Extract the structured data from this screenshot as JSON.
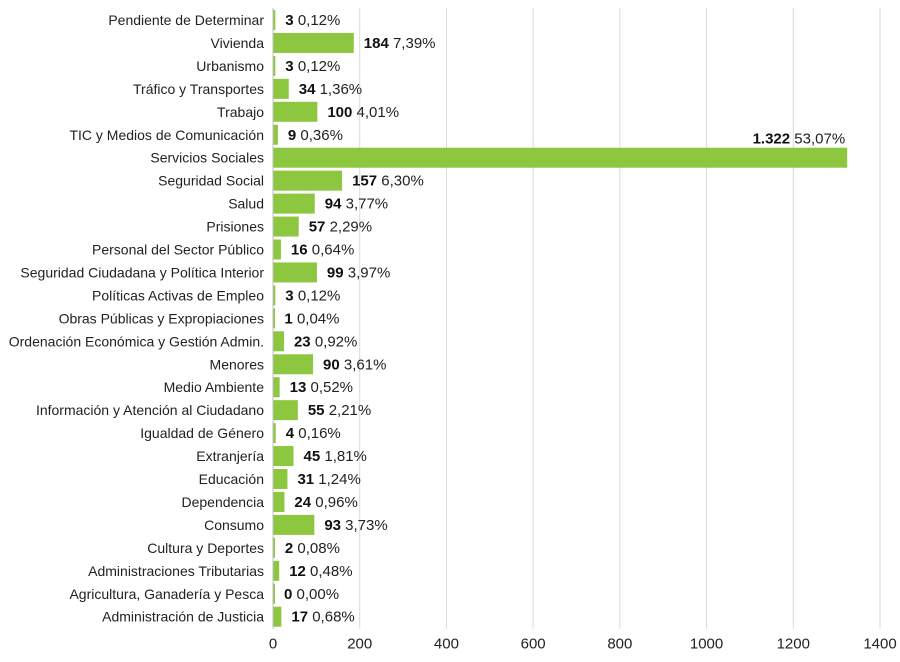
{
  "chart_data": {
    "type": "bar",
    "orientation": "horizontal",
    "bar_color": "#8dc63f",
    "xlim": [
      0,
      1400
    ],
    "xticks": [
      "0",
      "200",
      "400",
      "600",
      "800",
      "1000",
      "1200",
      "1400"
    ],
    "grid": true,
    "categories": [
      {
        "label": "Pendiente de Determinar",
        "value": 3,
        "value_label": "3",
        "pct_label": "0,12%"
      },
      {
        "label": "Vivienda",
        "value": 184,
        "value_label": "184",
        "pct_label": "7,39%"
      },
      {
        "label": "Urbanismo",
        "value": 3,
        "value_label": "3",
        "pct_label": "0,12%"
      },
      {
        "label": "Tráfico y Transportes",
        "value": 34,
        "value_label": "34",
        "pct_label": "1,36%"
      },
      {
        "label": "Trabajo",
        "value": 100,
        "value_label": "100",
        "pct_label": "4,01%"
      },
      {
        "label": "TIC y Medios de Comunicación",
        "value": 9,
        "value_label": "9",
        "pct_label": "0,36%"
      },
      {
        "label": "Servicios Sociales",
        "value": 1322,
        "value_label": "1.322",
        "pct_label": "53,07%"
      },
      {
        "label": "Seguridad Social",
        "value": 157,
        "value_label": "157",
        "pct_label": "6,30%"
      },
      {
        "label": "Salud",
        "value": 94,
        "value_label": "94",
        "pct_label": "3,77%"
      },
      {
        "label": "Prisiones",
        "value": 57,
        "value_label": "57",
        "pct_label": "2,29%"
      },
      {
        "label": "Personal del Sector Público",
        "value": 16,
        "value_label": "16",
        "pct_label": "0,64%"
      },
      {
        "label": "Seguridad Ciudadana y Política Interior",
        "value": 99,
        "value_label": "99",
        "pct_label": "3,97%"
      },
      {
        "label": "Políticas Activas de Empleo",
        "value": 3,
        "value_label": "3",
        "pct_label": "0,12%"
      },
      {
        "label": "Obras Públicas y Expropiaciones",
        "value": 1,
        "value_label": "1",
        "pct_label": "0,04%"
      },
      {
        "label": "Ordenación Económica y Gestión Admin.",
        "value": 23,
        "value_label": "23",
        "pct_label": "0,92%"
      },
      {
        "label": "Menores",
        "value": 90,
        "value_label": "90",
        "pct_label": "3,61%"
      },
      {
        "label": "Medio Ambiente",
        "value": 13,
        "value_label": "13",
        "pct_label": "0,52%"
      },
      {
        "label": "Información y Atención al Ciudadano",
        "value": 55,
        "value_label": "55",
        "pct_label": "2,21%"
      },
      {
        "label": "Igualdad de Género",
        "value": 4,
        "value_label": "4",
        "pct_label": "0,16%"
      },
      {
        "label": "Extranjería",
        "value": 45,
        "value_label": "45",
        "pct_label": "1,81%"
      },
      {
        "label": "Educación",
        "value": 31,
        "value_label": "31",
        "pct_label": "1,24%"
      },
      {
        "label": "Dependencia",
        "value": 24,
        "value_label": "24",
        "pct_label": "0,96%"
      },
      {
        "label": "Consumo",
        "value": 93,
        "value_label": "93",
        "pct_label": "3,73%"
      },
      {
        "label": "Cultura y Deportes",
        "value": 2,
        "value_label": "2",
        "pct_label": "0,08%"
      },
      {
        "label": "Administraciones Tributarias",
        "value": 12,
        "value_label": "12",
        "pct_label": "0,48%"
      },
      {
        "label": "Agricultura, Ganadería y Pesca",
        "value": 0,
        "value_label": "0",
        "pct_label": "0,00%"
      },
      {
        "label": "Administración de Justicia",
        "value": 17,
        "value_label": "17",
        "pct_label": "0,68%"
      }
    ]
  }
}
